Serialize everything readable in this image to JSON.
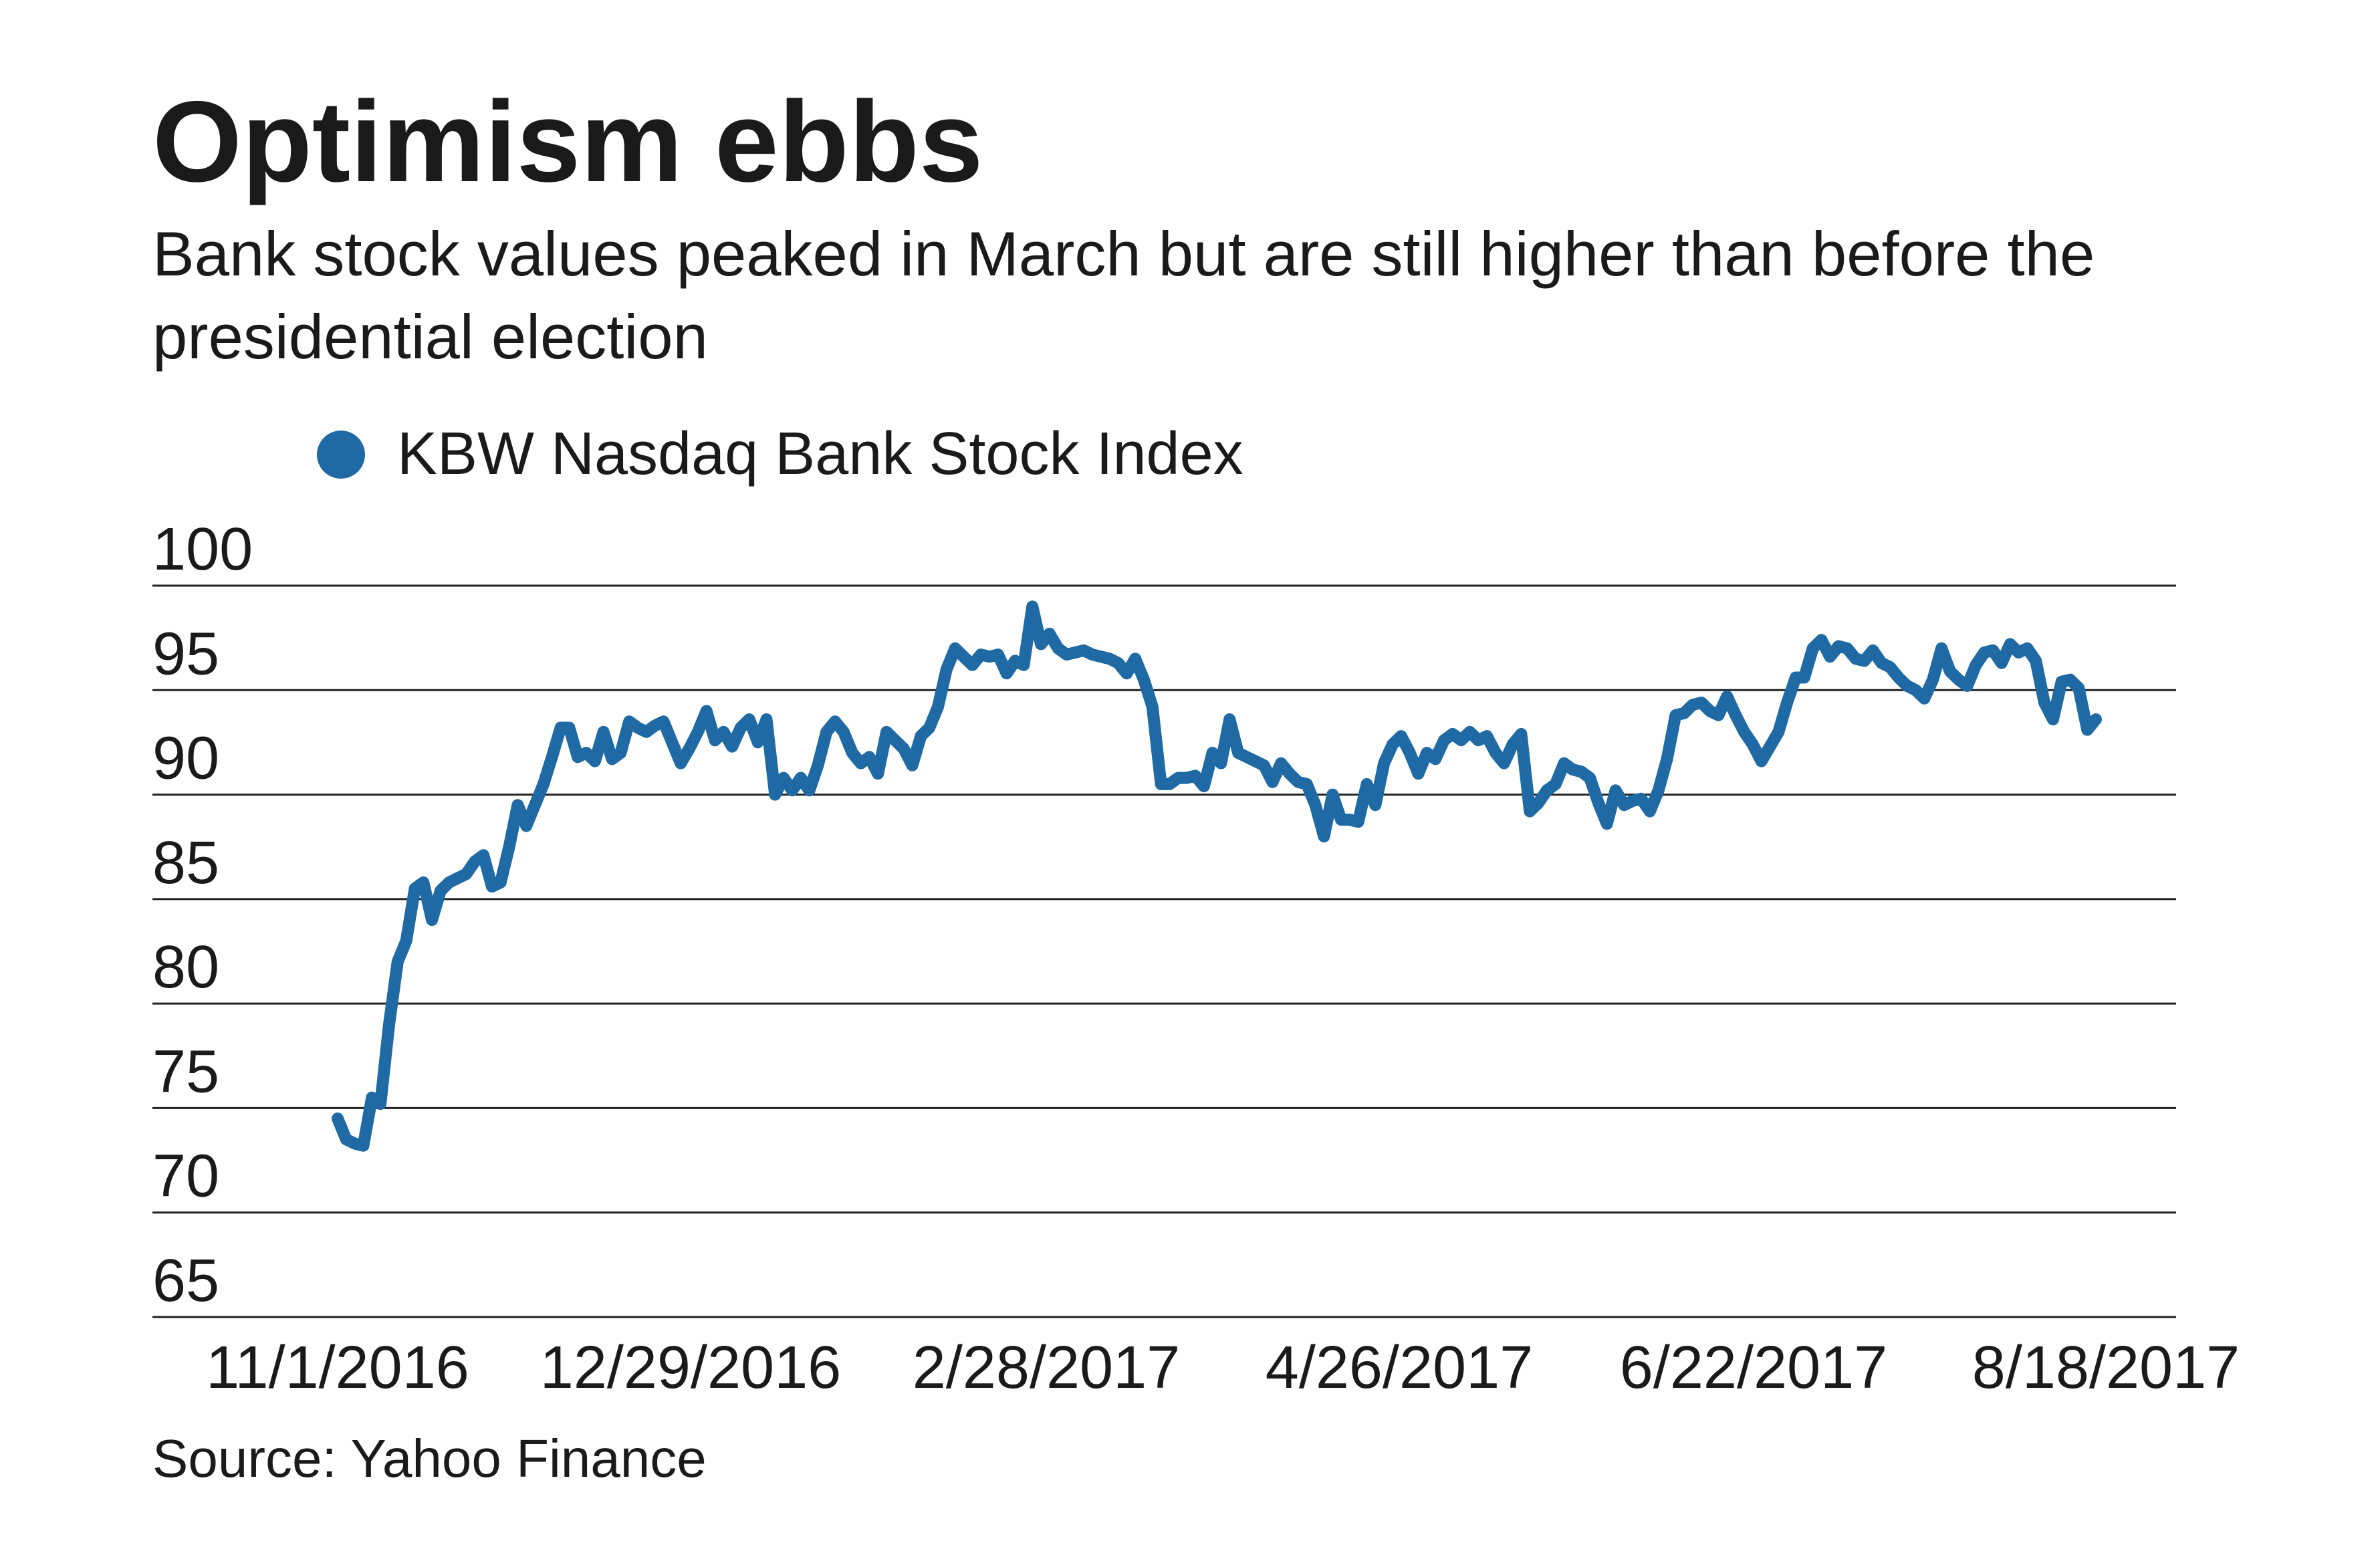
{
  "title": "Optimism ebbs",
  "subtitle": "Bank stock values peaked in March but are still higher than before the presidential election",
  "source": "Source: Yahoo Finance",
  "colors": {
    "line": "#1f6aa5",
    "grid": "#222222"
  },
  "chart_data": {
    "type": "line",
    "title": "Optimism ebbs",
    "subtitle": "Bank stock values peaked in March but are still higher than before the presidential election",
    "legend_position": "top-left",
    "grid": true,
    "ylim": [
      65,
      100
    ],
    "yticks": [
      65,
      70,
      75,
      80,
      85,
      90,
      95,
      100
    ],
    "xtick_labels": [
      "11/1/2016",
      "12/29/2016",
      "2/28/2017",
      "4/26/2017",
      "6/22/2017",
      "8/18/2017"
    ],
    "series": [
      {
        "name": "KBW Nasdaq Bank Stock Index",
        "values": [
          74.5,
          73.5,
          73.3,
          73.2,
          75.5,
          75.2,
          79,
          82,
          83,
          85.5,
          85.8,
          84,
          85.4,
          85.8,
          86,
          86.2,
          86.8,
          87.1,
          85.6,
          85.8,
          87.5,
          89.5,
          88.5,
          89.5,
          90.5,
          91.8,
          93.2,
          93.2,
          91.8,
          92,
          91.6,
          93,
          91.7,
          92,
          93.5,
          93.2,
          93,
          93.3,
          93.5,
          92.5,
          91.5,
          92.2,
          93,
          94,
          92.6,
          93,
          92.3,
          93.2,
          93.6,
          92.5,
          93.6,
          90,
          90.8,
          90.2,
          90.8,
          90.2,
          91.4,
          93,
          93.5,
          93,
          92,
          91.5,
          91.8,
          91,
          93,
          92.6,
          92.2,
          91.4,
          92.8,
          93.2,
          94.2,
          96,
          97,
          96.6,
          96.2,
          96.7,
          96.6,
          96.7,
          95.8,
          96.4,
          96.2,
          99,
          97.2,
          97.7,
          97,
          96.7,
          96.8,
          96.9,
          96.7,
          96.6,
          96.5,
          96.3,
          95.8,
          96.5,
          95.5,
          94.2,
          90.5,
          90.5,
          90.8,
          90.8,
          90.9,
          90.4,
          92,
          91.5,
          93.6,
          92,
          91.8,
          91.6,
          91.4,
          90.6,
          91.5,
          91,
          90.6,
          90.5,
          89.5,
          88,
          90,
          88.8,
          88.8,
          88.7,
          90.5,
          89.5,
          91.5,
          92.4,
          92.8,
          92,
          91,
          92,
          91.7,
          92.6,
          92.9,
          92.6,
          93,
          92.6,
          92.8,
          92,
          91.5,
          92.4,
          92.9,
          89.2,
          89.6,
          90.2,
          90.5,
          91.5,
          91.2,
          91.1,
          90.8,
          89.6,
          88.6,
          90.2,
          89.5,
          89.7,
          89.8,
          89.2,
          90.2,
          91.7,
          93.8,
          93.9,
          94.3,
          94.4,
          94,
          93.8,
          94.7,
          93.8,
          93,
          92.4,
          91.6,
          92.3,
          93,
          94.4,
          95.6,
          95.6,
          97,
          97.4,
          96.6,
          97.1,
          97,
          96.5,
          96.4,
          96.9,
          96.3,
          96.1,
          95.6,
          95.2,
          95,
          94.6,
          95.5,
          97,
          95.9,
          95.5,
          95.2,
          96.2,
          96.8,
          96.9,
          96.3,
          97.2,
          96.8,
          97,
          96.4,
          94.4,
          93.6,
          95.4,
          95.5,
          95.1,
          93.1,
          93.6
        ]
      }
    ]
  }
}
